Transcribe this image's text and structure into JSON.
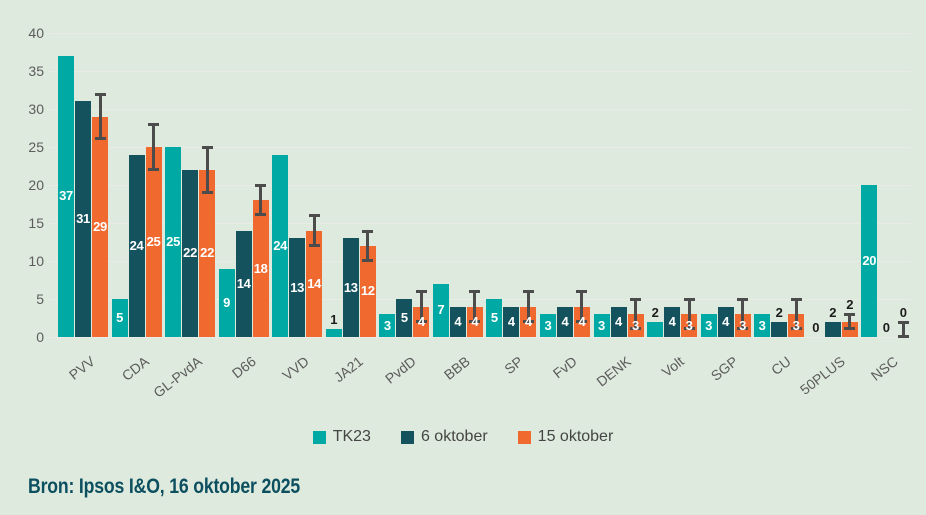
{
  "chart_data": {
    "type": "bar",
    "title": "",
    "xlabel": "",
    "ylabel": "",
    "categories": [
      "PVV",
      "CDA",
      "GL-PvdA",
      "D66",
      "VVD",
      "JA21",
      "PvdD",
      "BBB",
      "SP",
      "FvD",
      "DENK",
      "Volt",
      "SGP",
      "CU",
      "50PLUS",
      "NSC"
    ],
    "series": [
      {
        "name": "TK23",
        "color": "#00a9a3",
        "values": [
          37,
          5,
          25,
          9,
          24,
          1,
          3,
          7,
          5,
          3,
          3,
          2,
          3,
          3,
          0,
          20
        ]
      },
      {
        "name": "6 oktober",
        "color": "#14525e",
        "values": [
          31,
          24,
          22,
          14,
          13,
          13,
          5,
          4,
          4,
          4,
          4,
          4,
          4,
          2,
          2,
          0
        ]
      },
      {
        "name": "15 oktober",
        "color": "#f0692e",
        "values": [
          29,
          25,
          22,
          18,
          14,
          12,
          4,
          4,
          4,
          4,
          3,
          3,
          3,
          3,
          2,
          0
        ],
        "error_low": [
          26,
          22,
          19,
          16,
          12,
          10,
          2,
          2,
          2,
          2,
          1,
          1,
          1,
          1,
          1,
          0
        ],
        "error_high": [
          32,
          28,
          25,
          20,
          16,
          14,
          6,
          6,
          6,
          6,
          5,
          5,
          5,
          5,
          3,
          2
        ]
      }
    ],
    "ylim": [
      0,
      40
    ],
    "yticks": [
      0,
      5,
      10,
      15,
      20,
      25,
      30,
      35,
      40
    ],
    "grid": "horizontal",
    "legend_position": "bottom"
  },
  "colors": {
    "background": "#deeade",
    "gridline": "#e9ebe5",
    "axis_text": "#5c5c5c",
    "bar_label_inside": "#ffffff",
    "bar_label_outside": "#1c1c1c",
    "error_bar": "#4c4c4c",
    "legend_text": "#454545",
    "source_text": "#0c4f5f"
  },
  "source": {
    "label": "Bron: Ipsos I&O, 16 oktober 2025"
  }
}
